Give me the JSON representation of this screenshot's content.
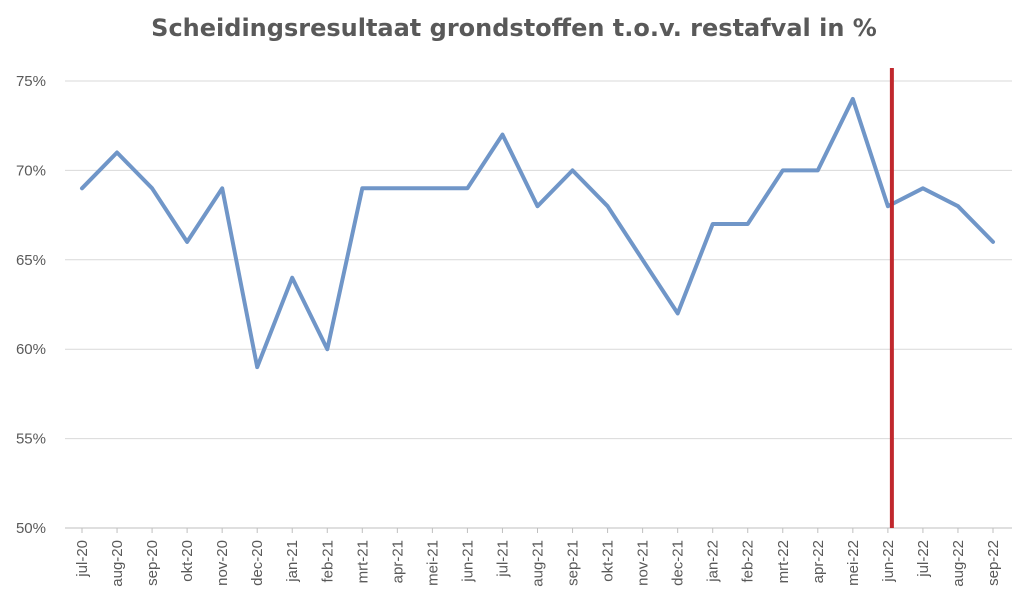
{
  "chart_data": {
    "type": "line",
    "title": "Scheidingsresultaat grondstoffen t.o.v. restafval in %",
    "xlabel": "",
    "ylabel": "",
    "categories": [
      "jul-20",
      "aug-20",
      "sep-20",
      "okt-20",
      "nov-20",
      "dec-20",
      "jan-21",
      "feb-21",
      "mrt-21",
      "apr-21",
      "mei-21",
      "jun-21",
      "jul-21",
      "aug-21",
      "sep-21",
      "okt-21",
      "nov-21",
      "dec-21",
      "jan-22",
      "feb-22",
      "mrt-22",
      "apr-22",
      "mei-22",
      "jun-22",
      "jul-22",
      "aug-22",
      "sep-22"
    ],
    "series": [
      {
        "color": "#7096c8",
        "values": [
          69,
          71,
          69,
          66,
          69,
          59,
          64,
          60,
          69,
          69,
          69,
          69,
          72,
          68,
          70,
          68,
          65,
          62,
          67,
          67,
          70,
          70,
          74,
          68,
          69,
          68,
          66
        ]
      }
    ],
    "ylim": [
      50,
      75
    ],
    "yticks": [
      50,
      55,
      60,
      65,
      70,
      75
    ],
    "ytick_labels": [
      "50%",
      "55%",
      "60%",
      "65%",
      "70%",
      "75%"
    ],
    "grid": "horizontal",
    "legend": "none",
    "marker_line": {
      "at_category": "jun-22",
      "color": "#c0282d"
    }
  }
}
